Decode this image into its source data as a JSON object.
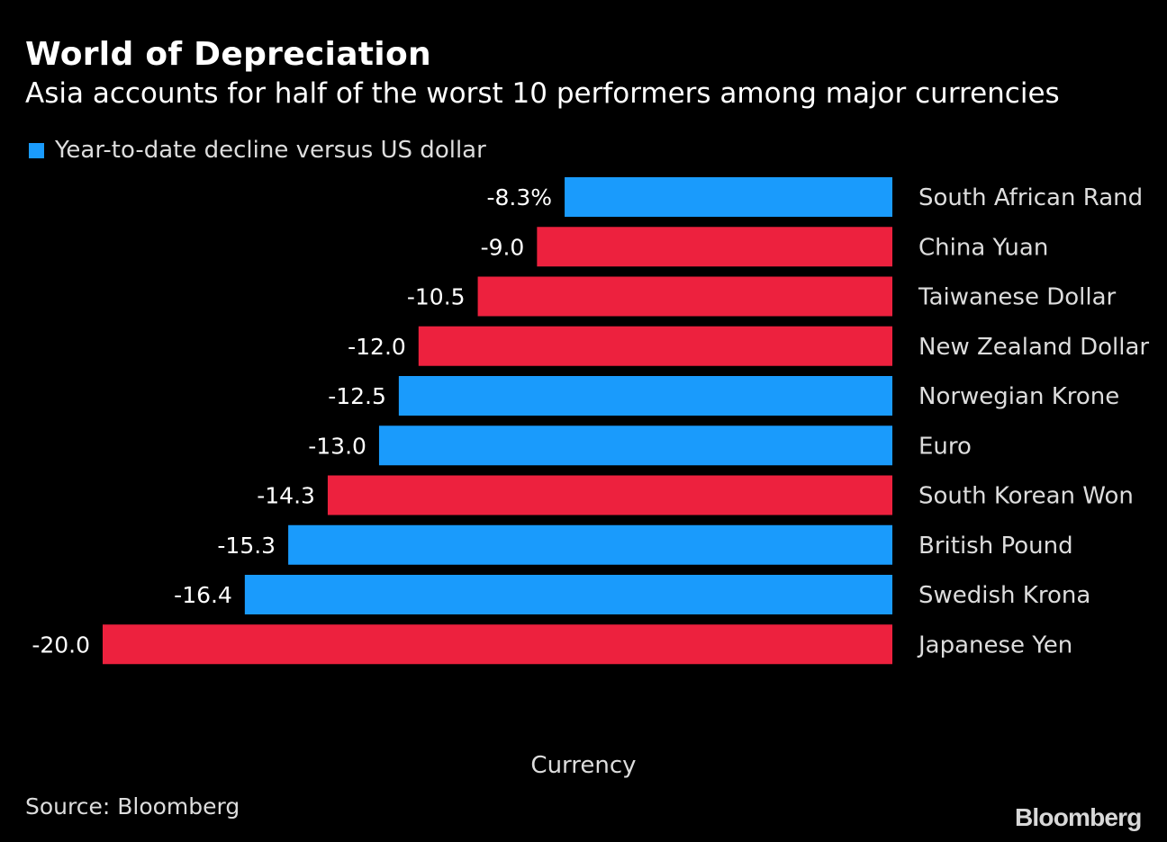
{
  "title": "World of Depreciation",
  "subtitle": "Asia accounts for half of the worst 10 performers among major currencies",
  "legend": [
    {
      "label": "Year-to-date decline versus US dollar",
      "color": "#1a9bfc"
    }
  ],
  "source": "Source: Bloomberg",
  "logo": "Bloomberg",
  "colors": {
    "blue": "#1a9bfc",
    "red": "#ed213e",
    "background": "#000000"
  },
  "chart_data": {
    "type": "bar",
    "orientation": "horizontal",
    "xlabel": "Currency",
    "xlim": [
      -20,
      0
    ],
    "grid": false,
    "legend_position": "top-left",
    "categories": [
      "South African Rand",
      "China Yuan",
      "Taiwanese Dollar",
      "New Zealand Dollar",
      "Norwegian Krone",
      "Euro",
      "South Korean Won",
      "British Pound",
      "Swedish Krona",
      "Japanese Yen"
    ],
    "values": [
      -8.3,
      -9.0,
      -10.5,
      -12.0,
      -12.5,
      -13.0,
      -14.3,
      -15.3,
      -16.4,
      -20.0
    ],
    "value_labels": [
      "-8.3%",
      "-9.0",
      "-10.5",
      "-12.0",
      "-12.5",
      "-13.0",
      "-14.3",
      "-15.3",
      "-16.4",
      "-20.0"
    ],
    "bar_colors": [
      "blue",
      "red",
      "red",
      "red",
      "blue",
      "blue",
      "red",
      "blue",
      "blue",
      "red"
    ]
  }
}
